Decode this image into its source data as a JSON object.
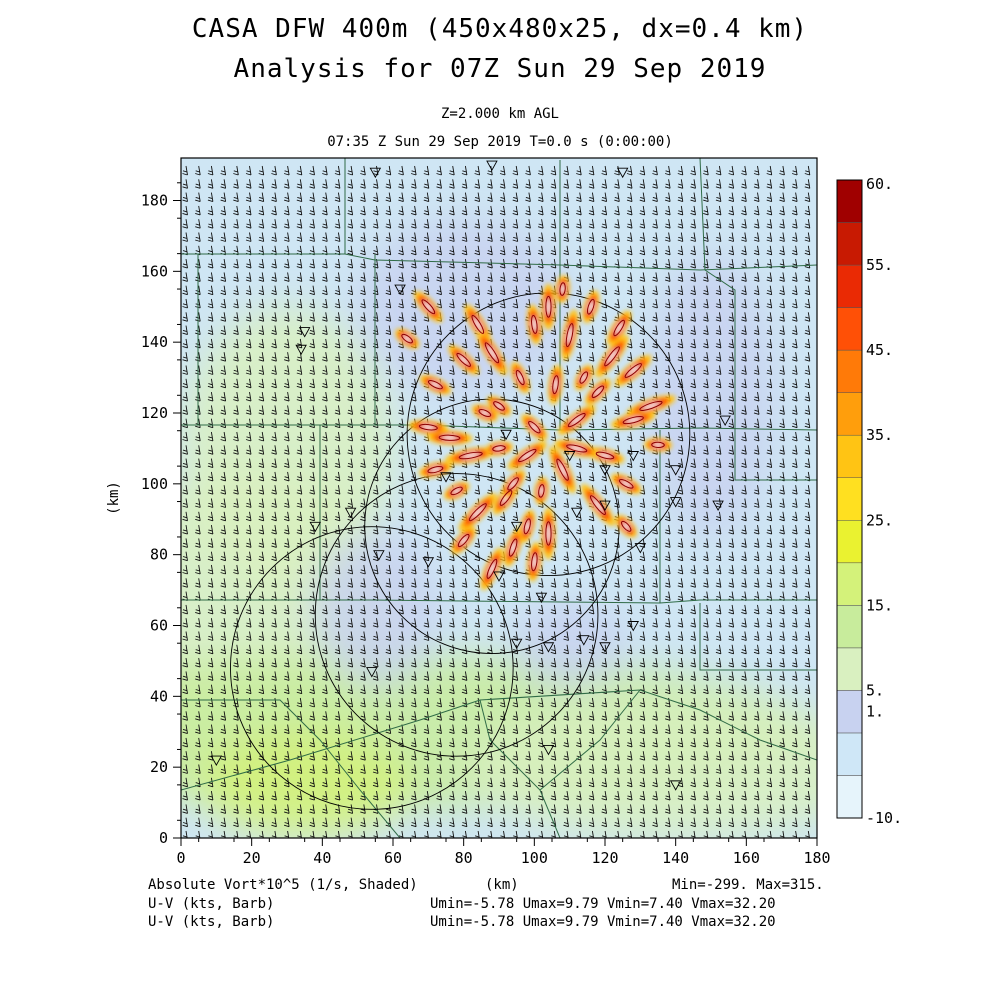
{
  "header": {
    "title_line1": "CASA DFW 400m (450x480x25, dx=0.4 km)",
    "title_line2": "Analysis for 07Z Sun 29 Sep 2019",
    "level": "Z=2.000 km AGL",
    "time": "07:35 Z Sun 29 Sep 2019    T=0.0 s (0:00:00)"
  },
  "chart_data": {
    "type": "heatmap",
    "xlabel": "(km)",
    "ylabel": "(km)",
    "xlim": [
      0,
      180
    ],
    "ylim": [
      0,
      192
    ],
    "x_ticks": [
      "0",
      "20",
      "40",
      "60",
      "80",
      "100",
      "120",
      "140",
      "160",
      "180"
    ],
    "y_ticks": [
      "0",
      "20",
      "40",
      "60",
      "80",
      "100",
      "120",
      "140",
      "160",
      "180"
    ],
    "colorbar_labels": [
      "60.",
      "55.",
      "45.",
      "35.",
      "25.",
      "15.",
      "5.",
      "1.",
      "-10."
    ],
    "colorbar_levels": [
      -10,
      -5,
      1,
      5,
      10,
      15,
      20,
      25,
      30,
      35,
      40,
      45,
      50,
      55,
      60
    ],
    "colorbar_colors": [
      "#e6f4fb",
      "#cfe7f7",
      "#c8d2f0",
      "#d9f0c0",
      "#c8ec9c",
      "#d4f27a",
      "#eaf230",
      "#ffe020",
      "#ffc414",
      "#ff9e0c",
      "#ff7a08",
      "#ff5006",
      "#ea2a04",
      "#c81a02",
      "#a00000"
    ],
    "shaded_field": "Absolute Vort*10^5 (1/s, Shaded)",
    "vector_fields": [
      "U-V (kts, Barb)",
      "U-V (kts, Barb)"
    ],
    "min_max": "Min=-299. Max=315.",
    "uv_stats": [
      "Umin=-5.78 Umax=9.79 Vmin=7.40 Vmax=32.20",
      "Umin=-5.78 Umax=9.79 Vmin=7.40 Vmax=32.20"
    ],
    "radar_rings": [
      {
        "cx": 104,
        "cy": 114,
        "r": 40
      },
      {
        "cx": 88,
        "cy": 88,
        "r": 36
      },
      {
        "cx": 78,
        "cy": 63,
        "r": 40
      },
      {
        "cx": 54,
        "cy": 48,
        "r": 40
      }
    ],
    "vortex_cores": [
      [
        64,
        141
      ],
      [
        72,
        128
      ],
      [
        80,
        135
      ],
      [
        84,
        145
      ],
      [
        88,
        137
      ],
      [
        90,
        122
      ],
      [
        96,
        130
      ],
      [
        100,
        145
      ],
      [
        104,
        150
      ],
      [
        110,
        142
      ],
      [
        114,
        130
      ],
      [
        118,
        126
      ],
      [
        124,
        144
      ],
      [
        128,
        132
      ],
      [
        133,
        122
      ],
      [
        135,
        111
      ],
      [
        126,
        100
      ],
      [
        120,
        108
      ],
      [
        112,
        118
      ],
      [
        108,
        104
      ],
      [
        102,
        98
      ],
      [
        98,
        88
      ],
      [
        94,
        82
      ],
      [
        88,
        76
      ],
      [
        84,
        92
      ],
      [
        78,
        98
      ],
      [
        72,
        104
      ],
      [
        70,
        116
      ],
      [
        76,
        113
      ],
      [
        82,
        108
      ],
      [
        90,
        110
      ],
      [
        100,
        116
      ],
      [
        106,
        128
      ],
      [
        112,
        110
      ],
      [
        118,
        94
      ],
      [
        126,
        88
      ],
      [
        80,
        84
      ],
      [
        92,
        96
      ],
      [
        98,
        108
      ],
      [
        104,
        86
      ],
      [
        108,
        155
      ],
      [
        116,
        150
      ],
      [
        70,
        150
      ],
      [
        128,
        118
      ],
      [
        122,
        136
      ],
      [
        86,
        120
      ],
      [
        94,
        100
      ],
      [
        100,
        78
      ]
    ]
  },
  "colors": {
    "grid": "#000000",
    "county_lines": "#2f6b46",
    "ring": "#000000"
  }
}
